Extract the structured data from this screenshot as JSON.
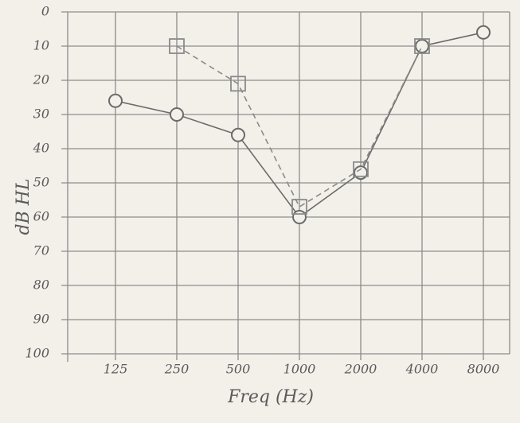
{
  "chart_data": {
    "type": "line",
    "y_label": "dB HL",
    "x_label": "Freq (Hz)",
    "categories": [
      "125",
      "250",
      "500",
      "1000",
      "2000",
      "4000",
      "8000"
    ],
    "series": [
      {
        "color": "#6b6b6b",
        "marker": "circle",
        "dashed": false,
        "values": [
          26,
          30,
          36,
          60,
          47,
          10,
          6
        ]
      },
      {
        "color": "#8a8a8a",
        "marker": "square",
        "dashed": true,
        "values": [
          null,
          10,
          21,
          57,
          46,
          10,
          null
        ]
      }
    ],
    "ylim": [
      0,
      100
    ],
    "y_inverted": true,
    "yticks": [
      0,
      10,
      20,
      30,
      40,
      50,
      60,
      70,
      80,
      90,
      100
    ],
    "grid": true
  }
}
